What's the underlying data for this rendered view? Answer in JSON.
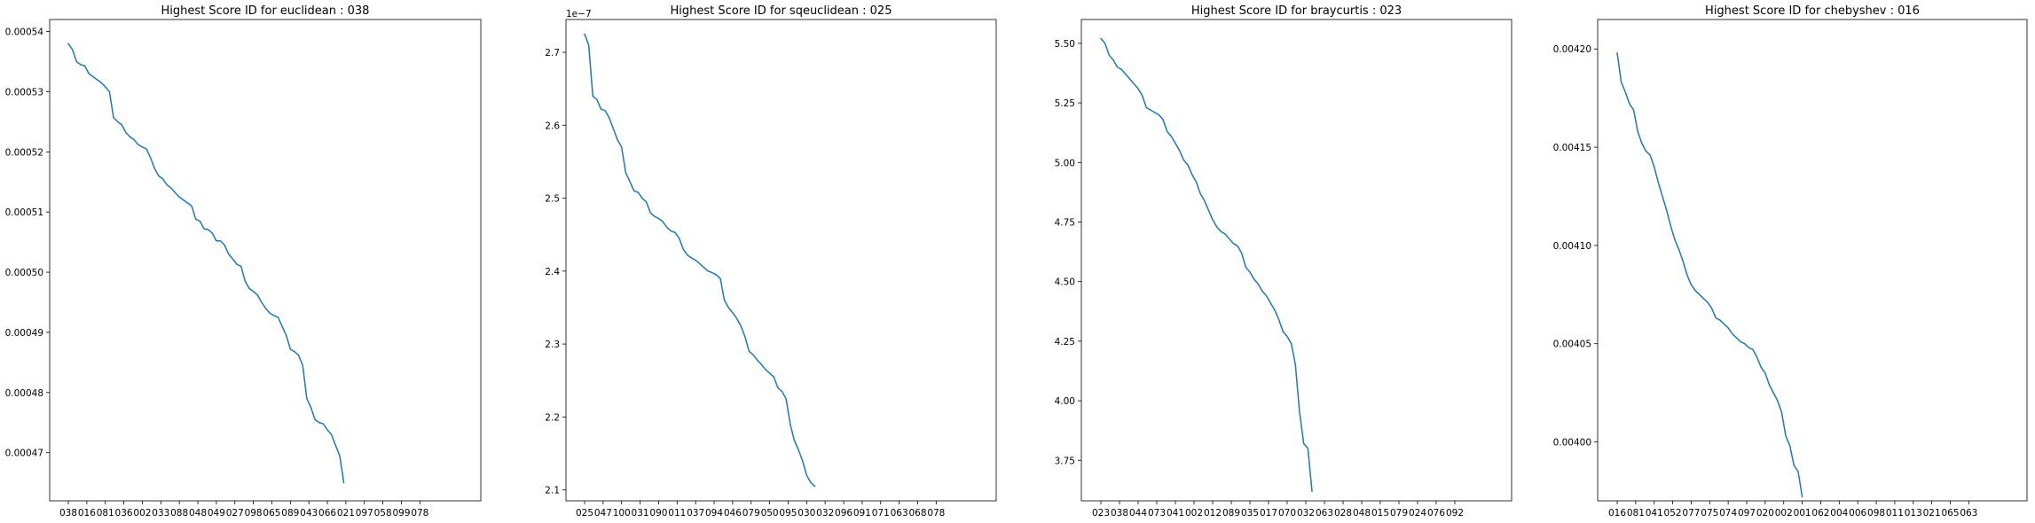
{
  "colors": {
    "line": "#1f77b4"
  },
  "chart_data": [
    {
      "type": "line",
      "title": "Highest Score ID for euclidean : 038",
      "xlabel": "",
      "ylabel": "",
      "x_tick_labels": [
        "038",
        "016",
        "081",
        "036",
        "002",
        "033",
        "088",
        "048",
        "049",
        "027",
        "098",
        "065",
        "089",
        "043",
        "066",
        "021",
        "097",
        "058",
        "099",
        "078"
      ],
      "y_offset": "",
      "ylim": [
        0.000462,
        0.000542
      ],
      "y_ticks": [
        0.00047,
        0.00048,
        0.00049,
        0.0005,
        0.00051,
        0.00052,
        0.00053,
        0.00054
      ],
      "y_tick_labels": [
        "0.00047",
        "0.00048",
        "0.00049",
        "0.00050",
        "0.00051",
        "0.00052",
        "0.00053",
        "0.00054"
      ],
      "points_per_tick": 4.5,
      "values": [
        0.000538,
        0.000537,
        0.000535,
        0.0005345,
        0.0005343,
        0.000533,
        0.0005325,
        0.000532,
        0.0005315,
        0.0005308,
        0.00053,
        0.0005257,
        0.000525,
        0.0005245,
        0.0005232,
        0.0005225,
        0.000522,
        0.0005212,
        0.0005208,
        0.0005205,
        0.000519,
        0.0005172,
        0.000516,
        0.0005155,
        0.0005145,
        0.000514,
        0.0005132,
        0.0005125,
        0.000512,
        0.0005115,
        0.000511,
        0.0005088,
        0.0005085,
        0.0005072,
        0.0005071,
        0.0005065,
        0.0005052,
        0.0005052,
        0.0005045,
        0.000503,
        0.0005022,
        0.0005013,
        0.000501,
        0.0004985,
        0.0004973,
        0.0004968,
        0.0004962,
        0.000495,
        0.000494,
        0.0004932,
        0.0004928,
        0.0004925,
        0.000491,
        0.0004895,
        0.0004872,
        0.0004868,
        0.0004862,
        0.0004845,
        0.000479,
        0.0004775,
        0.0004755,
        0.000475,
        0.0004748,
        0.0004738,
        0.000473,
        0.0004712,
        0.0004695,
        0.000465
      ]
    },
    {
      "type": "line",
      "title": "Highest Score ID for sqeuclidean : 025",
      "xlabel": "",
      "ylabel": "",
      "x_tick_labels": [
        "025",
        "047",
        "100",
        "031",
        "090",
        "011",
        "037",
        "094",
        "046",
        "079",
        "050",
        "095",
        "030",
        "032",
        "096",
        "091",
        "071",
        "063",
        "068",
        "078"
      ],
      "y_offset": "1e−7",
      "ylim": [
        2.085,
        2.745
      ],
      "y_ticks": [
        2.1,
        2.2,
        2.3,
        2.4,
        2.5,
        2.6,
        2.7
      ],
      "y_tick_labels": [
        "2.1",
        "2.2",
        "2.3",
        "2.4",
        "2.5",
        "2.6",
        "2.7"
      ],
      "points_per_tick": 4.5,
      "values": [
        2.725,
        2.71,
        2.64,
        2.635,
        2.622,
        2.62,
        2.61,
        2.595,
        2.58,
        2.57,
        2.535,
        2.523,
        2.51,
        2.508,
        2.5,
        2.495,
        2.48,
        2.475,
        2.472,
        2.468,
        2.46,
        2.455,
        2.453,
        2.445,
        2.43,
        2.422,
        2.418,
        2.415,
        2.41,
        2.405,
        2.4,
        2.398,
        2.395,
        2.39,
        2.36,
        2.35,
        2.343,
        2.335,
        2.325,
        2.31,
        2.29,
        2.285,
        2.278,
        2.272,
        2.265,
        2.26,
        2.255,
        2.24,
        2.235,
        2.225,
        2.19,
        2.168,
        2.155,
        2.14,
        2.12,
        2.11,
        2.105
      ]
    },
    {
      "type": "line",
      "title": "Highest Score ID for braycurtis : 023",
      "xlabel": "",
      "ylabel": "",
      "x_tick_labels": [
        "023",
        "038",
        "044",
        "073",
        "041",
        "002",
        "012",
        "089",
        "035",
        "017",
        "070",
        "032",
        "063",
        "028",
        "048",
        "015",
        "079",
        "024",
        "076",
        "092"
      ],
      "y_offset": "",
      "ylim": [
        3.58,
        5.6
      ],
      "y_ticks": [
        3.75,
        4.0,
        4.25,
        4.5,
        4.75,
        5.0,
        5.25,
        5.5
      ],
      "y_tick_labels": [
        "3.75",
        "4.00",
        "4.25",
        "4.50",
        "4.75",
        "5.00",
        "5.25",
        "5.50"
      ],
      "points_per_tick": 4.5,
      "values": [
        5.52,
        5.5,
        5.45,
        5.43,
        5.4,
        5.39,
        5.37,
        5.35,
        5.33,
        5.31,
        5.28,
        5.23,
        5.22,
        5.21,
        5.2,
        5.18,
        5.13,
        5.11,
        5.08,
        5.05,
        5.01,
        4.99,
        4.95,
        4.92,
        4.87,
        4.84,
        4.8,
        4.76,
        4.73,
        4.71,
        4.7,
        4.68,
        4.66,
        4.65,
        4.62,
        4.56,
        4.54,
        4.51,
        4.49,
        4.46,
        4.44,
        4.41,
        4.38,
        4.34,
        4.29,
        4.27,
        4.24,
        4.15,
        3.95,
        3.82,
        3.8,
        3.62
      ]
    },
    {
      "type": "line",
      "title": "Highest Score ID for chebyshev : 016",
      "xlabel": "",
      "ylabel": "",
      "x_tick_labels": [
        "016",
        "081",
        "041",
        "052",
        "077",
        "075",
        "074",
        "097",
        "020",
        "002",
        "001",
        "062",
        "004",
        "006",
        "098",
        "011",
        "013",
        "021",
        "065",
        "063"
      ],
      "y_offset": "",
      "ylim": [
        0.00397,
        0.004215
      ],
      "y_ticks": [
        0.004,
        0.00405,
        0.0041,
        0.00415,
        0.0042
      ],
      "y_tick_labels": [
        "0.00400",
        "0.00405",
        "0.00410",
        "0.00415",
        "0.00420"
      ],
      "points_per_tick": 4.5,
      "values": [
        0.004198,
        0.004183,
        0.004178,
        0.004172,
        0.004169,
        0.004158,
        0.004152,
        0.004148,
        0.004146,
        0.00414,
        0.004132,
        0.004125,
        0.004118,
        0.00411,
        0.004103,
        0.004098,
        0.004092,
        0.004085,
        0.00408,
        0.004077,
        0.004075,
        0.004073,
        0.004071,
        0.004068,
        0.004063,
        0.004062,
        0.00406,
        0.004058,
        0.004055,
        0.004053,
        0.004051,
        0.00405,
        0.004048,
        0.004047,
        0.004043,
        0.004038,
        0.004035,
        0.004029,
        0.004025,
        0.004021,
        0.004015,
        0.004003,
        0.003998,
        0.003988,
        0.003985,
        0.003972
      ]
    }
  ]
}
